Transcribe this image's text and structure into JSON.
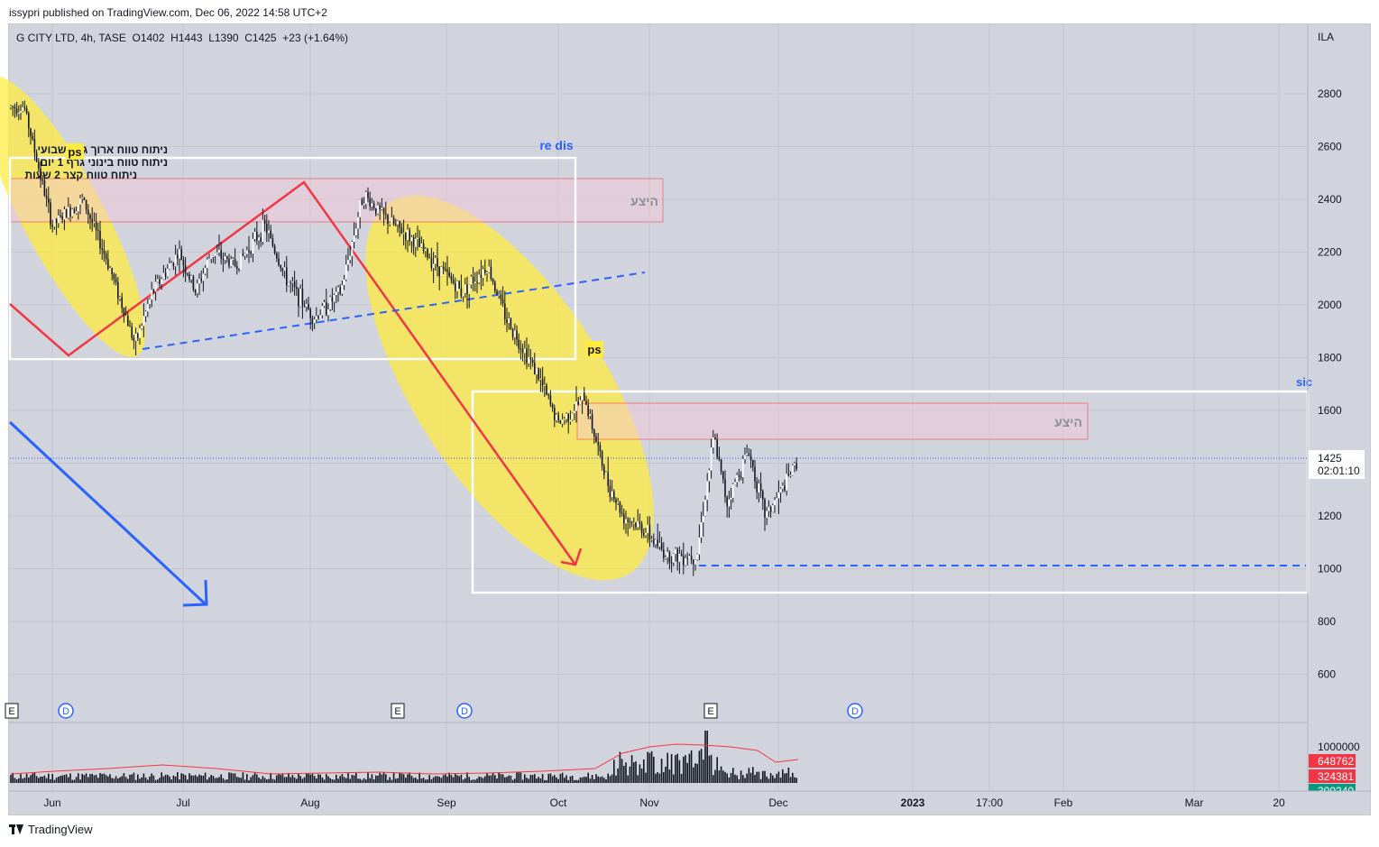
{
  "header": {
    "published_line": "issypri published on TradingView.com, Dec 06, 2022 14:58 UTC+2"
  },
  "symbol": {
    "line": "G CITY LTD, 4h, TASE  O1402  H1443  L1390  C1425  +23 (+1.64%)"
  },
  "currency_label": "ILA",
  "price_axis": {
    "ticks": [
      2800,
      2600,
      2400,
      2200,
      2000,
      1800,
      1600,
      1400,
      1200,
      1000,
      800,
      600
    ],
    "last_price": "1425",
    "countdown": "02:01:10"
  },
  "time_axis": {
    "labels": [
      "Jun",
      "Jul",
      "Aug",
      "Sep",
      "Oct",
      "Nov",
      "Dec",
      "2023",
      "17:00",
      "Feb",
      "Mar",
      "20"
    ]
  },
  "annotations": {
    "hebrew_lines": [
      "ניתוח טווח ארוך גרף שבועי",
      "ניתוח טווח בינוני גרף 1 יום",
      "ניתוח טווח קצר 2 שעות"
    ],
    "re_dis": "re dis",
    "ps_top": "ps",
    "ps_mid": "ps",
    "supply_top": "היצע",
    "supply_mid": "היצע",
    "sic": "sic"
  },
  "event_markers": [
    {
      "kind": "E"
    },
    {
      "kind": "D"
    },
    {
      "kind": "E"
    },
    {
      "kind": "D"
    },
    {
      "kind": "E"
    },
    {
      "kind": "D"
    }
  ],
  "volume": {
    "labels": [
      "1000000",
      "648762",
      "324381",
      "300240"
    ],
    "colors": {
      "up": "#f23645",
      "down": "#f23645",
      "green": "#089981"
    }
  },
  "footer": {
    "brand": "TradingView"
  },
  "colors": {
    "background": "#d1d4dc",
    "highlight": "#ffeb3b",
    "pattern_red": "#f23645",
    "trend_blue": "#2962ff",
    "zone_fill": "#f6c6d6"
  },
  "chart_data": {
    "type": "candlestick",
    "title": "G CITY LTD, 4h, TASE",
    "ylabel": "ILA",
    "ylim": [
      450,
      2950
    ],
    "ohlc_last": {
      "open": 1402,
      "high": 1443,
      "low": 1390,
      "close": 1425,
      "change": 23,
      "change_pct": 1.64
    },
    "x": [
      "Jun",
      "Jul",
      "Aug",
      "Sep",
      "Oct",
      "Nov",
      "Dec"
    ],
    "price_path": [
      [
        "May 25",
        2750
      ],
      [
        "Jun 01",
        2300
      ],
      [
        "Jun 08",
        2400
      ],
      [
        "Jun 14",
        2150
      ],
      [
        "Jun 20",
        1850
      ],
      [
        "Jun 24",
        2050
      ],
      [
        "Jun 30",
        2200
      ],
      [
        "Jul 04",
        2050
      ],
      [
        "Jul 08",
        2200
      ],
      [
        "Jul 14",
        2150
      ],
      [
        "Jul 21",
        2300
      ],
      [
        "Jul 26",
        2100
      ],
      [
        "Aug 02",
        1950
      ],
      [
        "Aug 08",
        2050
      ],
      [
        "Aug 13",
        2420
      ],
      [
        "Aug 18",
        2330
      ],
      [
        "Aug 24",
        2250
      ],
      [
        "Aug 30",
        2150
      ],
      [
        "Sep 05",
        2050
      ],
      [
        "Sep 12",
        2150
      ],
      [
        "Sep 17",
        1950
      ],
      [
        "Sep 25",
        1750
      ],
      [
        "Oct 01",
        1550
      ],
      [
        "Oct 06",
        1600
      ],
      [
        "Oct 10",
        1650
      ],
      [
        "Oct 17",
        1350
      ],
      [
        "Oct 23",
        1200
      ],
      [
        "Oct 30",
        1150
      ],
      [
        "Nov 05",
        1050
      ],
      [
        "Nov 12",
        1050
      ],
      [
        "Nov 16",
        1500
      ],
      [
        "Nov 19",
        1250
      ],
      [
        "Nov 24",
        1450
      ],
      [
        "Nov 28",
        1200
      ],
      [
        "Dec 02",
        1300
      ],
      [
        "Dec 06",
        1425
      ]
    ],
    "levels": {
      "support_dashed": 1015,
      "range_box_top": [
        1800,
        2550
      ],
      "range_box_bottom": [
        910,
        1670
      ],
      "supply_zone_top": [
        2320,
        2480
      ],
      "supply_zone_mid": [
        1490,
        1630
      ]
    },
    "volume": {
      "max_label": 1000000,
      "last": 648762,
      "ma": 324381
    }
  }
}
